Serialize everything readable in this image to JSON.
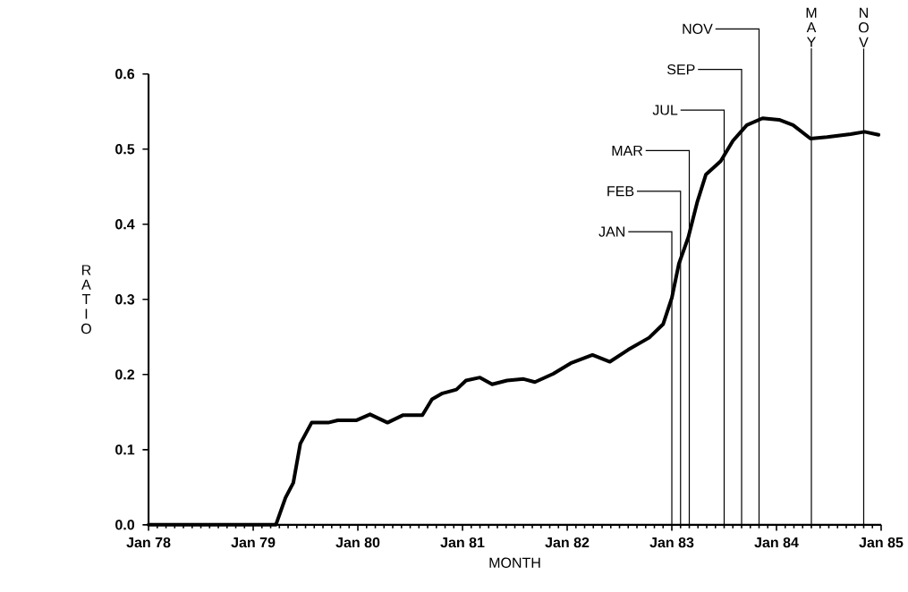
{
  "chart_data": {
    "type": "line",
    "xlabel": "MONTH",
    "ylabel": "RATIO",
    "color": "#000000",
    "x": [
      "1978-01-01",
      "1979-03-19",
      "1979-04-22",
      "1979-05-19",
      "1979-06-13",
      "1979-07-22",
      "1979-09-19",
      "1979-10-22",
      "1979-12-25",
      "1980-02-13",
      "1980-04-13",
      "1980-06-07",
      "1980-08-13",
      "1980-09-16",
      "1980-10-22",
      "1980-12-10",
      "1981-01-13",
      "1981-03-01",
      "1981-04-13",
      "1981-06-04",
      "1981-08-01",
      "1981-09-10",
      "1981-11-13",
      "1982-01-13",
      "1982-03-28",
      "1982-05-28",
      "1982-08-01",
      "1982-10-13",
      "1982-12-01",
      "1983-01-01",
      "1983-01-25",
      "1983-02-28",
      "1983-03-28",
      "1983-04-28",
      "1983-06-19",
      "1983-08-01",
      "1983-09-19",
      "1983-11-13",
      "1984-01-10",
      "1984-02-28",
      "1984-04-28",
      "1984-06-25",
      "1984-09-16",
      "1984-11-04",
      "1984-12-22"
    ],
    "values": [
      0,
      0,
      0.036,
      0.056,
      0.108,
      0.136,
      0.136,
      0.139,
      0.139,
      0.147,
      0.136,
      0.146,
      0.146,
      0.167,
      0.175,
      0.18,
      0.192,
      0.196,
      0.187,
      0.192,
      0.194,
      0.19,
      0.201,
      0.215,
      0.226,
      0.217,
      0.233,
      0.249,
      0.267,
      0.302,
      0.347,
      0.383,
      0.429,
      0.466,
      0.484,
      0.511,
      0.532,
      0.541,
      0.539,
      0.532,
      0.514,
      0.516,
      0.52,
      0.523,
      0.519
    ],
    "xlim": [
      "1978-01",
      "1985-01"
    ],
    "xticks": [
      {
        "value": "1978-01",
        "label": "Jan 78"
      },
      {
        "value": "1979-01",
        "label": "Jan 79"
      },
      {
        "value": "1980-01",
        "label": "Jan 80"
      },
      {
        "value": "1981-01",
        "label": "Jan 81"
      },
      {
        "value": "1982-01",
        "label": "Jan 82"
      },
      {
        "value": "1983-01",
        "label": "Jan 83"
      },
      {
        "value": "1984-01",
        "label": "Jan 84"
      },
      {
        "value": "1985-01",
        "label": "Jan 85"
      }
    ],
    "ylim": [
      0,
      0.6
    ],
    "yticks": [
      {
        "value": 0,
        "label": "0.0"
      },
      {
        "value": 0.1,
        "label": "0.1"
      },
      {
        "value": 0.2,
        "label": "0.2"
      },
      {
        "value": 0.3,
        "label": "0.3"
      },
      {
        "value": 0.4,
        "label": "0.4"
      },
      {
        "value": 0.5,
        "label": "0.5"
      },
      {
        "value": 0.6,
        "label": "0.6"
      }
    ],
    "ref_lines": [
      {
        "axis": "x",
        "value": "1983-01",
        "label": "JAN"
      },
      {
        "axis": "x",
        "value": "1983-02",
        "label": "FEB"
      },
      {
        "axis": "x",
        "value": "1983-03",
        "label": "MAR"
      },
      {
        "axis": "x",
        "value": "1983-07",
        "label": "JUL"
      },
      {
        "axis": "x",
        "value": "1983-09",
        "label": "SEP"
      },
      {
        "axis": "x",
        "value": "1983-11",
        "label": "NOV"
      },
      {
        "axis": "x",
        "value": "1984-05",
        "label": "MAY"
      },
      {
        "axis": "x",
        "value": "1984-11",
        "label": "NOV"
      }
    ]
  }
}
